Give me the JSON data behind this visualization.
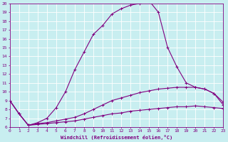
{
  "xlabel": "Windchill (Refroidissement éolien,°C)",
  "bg_color": "#c8eef0",
  "grid_color": "#ffffff",
  "line_color": "#800080",
  "xlim": [
    0,
    23
  ],
  "ylim": [
    6,
    20
  ],
  "xticks": [
    0,
    1,
    2,
    3,
    4,
    5,
    6,
    7,
    8,
    9,
    10,
    11,
    12,
    13,
    14,
    15,
    16,
    17,
    18,
    19,
    20,
    21,
    22,
    23
  ],
  "yticks": [
    6,
    7,
    8,
    9,
    10,
    11,
    12,
    13,
    14,
    15,
    16,
    17,
    18,
    19,
    20
  ],
  "curve1_x": [
    0,
    1,
    2,
    3,
    4,
    5,
    6,
    7,
    8,
    9,
    10,
    11,
    12,
    13,
    14,
    15,
    16,
    17,
    18,
    19,
    20,
    21,
    22,
    23
  ],
  "curve1_y": [
    9.0,
    7.5,
    6.2,
    6.5,
    7.0,
    8.2,
    10.0,
    12.5,
    14.5,
    16.5,
    17.5,
    18.8,
    19.4,
    19.8,
    20.0,
    20.3,
    19.0,
    15.0,
    12.8,
    11.0,
    10.5,
    10.3,
    9.8,
    8.5
  ],
  "curve2_x": [
    0,
    1,
    2,
    3,
    4,
    5,
    6,
    7,
    8,
    9,
    10,
    11,
    12,
    13,
    14,
    15,
    16,
    17,
    18,
    19,
    20,
    21,
    22,
    23
  ],
  "curve2_y": [
    9.0,
    7.5,
    6.2,
    6.4,
    6.5,
    6.7,
    6.9,
    7.1,
    7.5,
    8.0,
    8.5,
    9.0,
    9.3,
    9.6,
    9.9,
    10.1,
    10.3,
    10.4,
    10.5,
    10.5,
    10.5,
    10.3,
    9.8,
    8.8
  ],
  "curve3_x": [
    0,
    1,
    2,
    3,
    4,
    5,
    6,
    7,
    8,
    9,
    10,
    11,
    12,
    13,
    14,
    15,
    16,
    17,
    18,
    19,
    20,
    21,
    22,
    23
  ],
  "curve3_y": [
    9.0,
    7.5,
    6.2,
    6.3,
    6.4,
    6.5,
    6.6,
    6.7,
    6.9,
    7.1,
    7.3,
    7.5,
    7.6,
    7.8,
    7.9,
    8.0,
    8.1,
    8.2,
    8.3,
    8.3,
    8.4,
    8.3,
    8.2,
    8.1
  ]
}
